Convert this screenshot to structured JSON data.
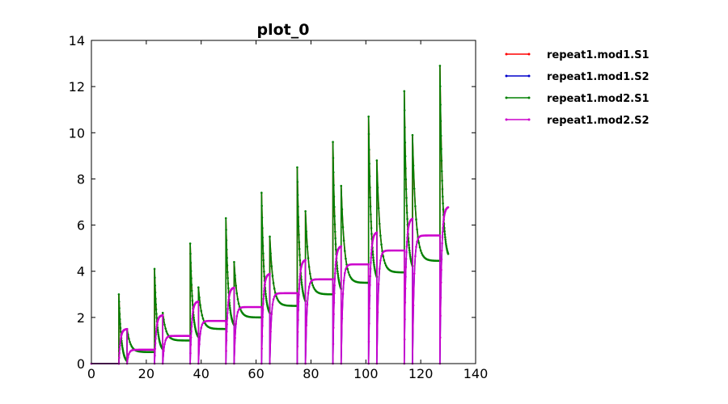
{
  "chart_data": {
    "type": "line",
    "title": "plot_0",
    "xlabel": "",
    "ylabel": "",
    "xlim": [
      0,
      140
    ],
    "ylim": [
      0,
      14
    ],
    "xticks": [
      0,
      20,
      40,
      60,
      80,
      100,
      120,
      140
    ],
    "yticks": [
      0,
      2,
      4,
      6,
      8,
      10,
      12,
      14
    ],
    "grid": false,
    "legend_position": "outside-right",
    "series": [
      {
        "name": "repeat1.mod1.S1",
        "color": "#ff0000",
        "role": "S1"
      },
      {
        "name": "repeat1.mod1.S2",
        "color": "#0000cc",
        "role": "S2"
      },
      {
        "name": "repeat1.mod2.S1",
        "color": "#008000",
        "role": "S1"
      },
      {
        "name": "repeat1.mod2.S2",
        "color": "#cc00cc",
        "role": "S2"
      }
    ],
    "pulses_S1": [
      {
        "t": 10,
        "peak": 3.0
      },
      {
        "t": 13,
        "peak": 1.5
      },
      {
        "t": 23,
        "peak": 4.1
      },
      {
        "t": 26,
        "peak": 2.2
      },
      {
        "t": 36,
        "peak": 5.2
      },
      {
        "t": 39,
        "peak": 3.3
      },
      {
        "t": 49,
        "peak": 6.3
      },
      {
        "t": 52,
        "peak": 4.4
      },
      {
        "t": 62,
        "peak": 7.4
      },
      {
        "t": 65,
        "peak": 5.5
      },
      {
        "t": 75,
        "peak": 8.5
      },
      {
        "t": 78,
        "peak": 6.6
      },
      {
        "t": 88,
        "peak": 9.6
      },
      {
        "t": 91,
        "peak": 7.7
      },
      {
        "t": 101,
        "peak": 10.7
      },
      {
        "t": 104,
        "peak": 8.8
      },
      {
        "t": 114,
        "peak": 11.8
      },
      {
        "t": 117,
        "peak": 9.9
      },
      {
        "t": 127,
        "peak": 12.9
      }
    ],
    "plateaus_S1": [
      {
        "t": 13,
        "level": 0.5
      },
      {
        "t": 26,
        "level": 1.0
      },
      {
        "t": 39,
        "level": 1.5
      },
      {
        "t": 52,
        "level": 2.0
      },
      {
        "t": 65,
        "level": 2.5
      },
      {
        "t": 78,
        "level": 3.0
      },
      {
        "t": 91,
        "level": 3.5
      },
      {
        "t": 104,
        "level": 3.95
      },
      {
        "t": 117,
        "level": 4.45
      }
    ],
    "plateaus_S2": [
      {
        "t": 10,
        "level": 1.5
      },
      {
        "t": 13,
        "level": 0.6
      },
      {
        "t": 23,
        "level": 2.1
      },
      {
        "t": 26,
        "level": 1.2
      },
      {
        "t": 36,
        "level": 2.7
      },
      {
        "t": 39,
        "level": 1.85
      },
      {
        "t": 49,
        "level": 3.3
      },
      {
        "t": 52,
        "level": 2.45
      },
      {
        "t": 62,
        "level": 3.9
      },
      {
        "t": 65,
        "level": 3.05
      },
      {
        "t": 75,
        "level": 4.5
      },
      {
        "t": 78,
        "level": 3.65
      },
      {
        "t": 88,
        "level": 5.1
      },
      {
        "t": 91,
        "level": 4.3
      },
      {
        "t": 101,
        "level": 5.7
      },
      {
        "t": 104,
        "level": 4.9
      },
      {
        "t": 114,
        "level": 6.3
      },
      {
        "t": 117,
        "level": 5.55
      },
      {
        "t": 127,
        "level": 6.8
      }
    ],
    "x_end": 130
  }
}
